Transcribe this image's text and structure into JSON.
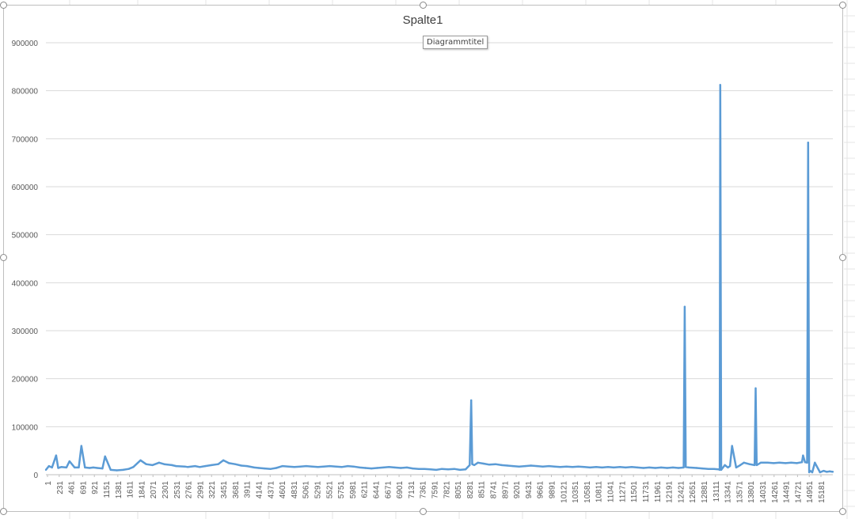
{
  "chart_data": {
    "type": "line",
    "title": "Spalte1",
    "tooltip": "Diagrammtitel",
    "xlabel": "",
    "ylabel": "",
    "ylim": [
      0,
      900000
    ],
    "xlim": [
      1,
      15300
    ],
    "y_ticks": [
      0,
      100000,
      200000,
      300000,
      400000,
      500000,
      600000,
      700000,
      800000,
      900000
    ],
    "y_tick_labels": [
      "0",
      "100000",
      "200000",
      "300000",
      "400000",
      "500000",
      "600000",
      "700000",
      "800000",
      "900000"
    ],
    "x_tick_labels": [
      "1",
      "231",
      "461",
      "691",
      "921",
      "1151",
      "1381",
      "1611",
      "1841",
      "2071",
      "2301",
      "2531",
      "2761",
      "2991",
      "3221",
      "3451",
      "3681",
      "3911",
      "4141",
      "4371",
      "4601",
      "4831",
      "5061",
      "5291",
      "5521",
      "5751",
      "5981",
      "6211",
      "6441",
      "6671",
      "6901",
      "7131",
      "7361",
      "7591",
      "7821",
      "8051",
      "8281",
      "8511",
      "8741",
      "8971",
      "9201",
      "9431",
      "9661",
      "9891",
      "10121",
      "10351",
      "10581",
      "10811",
      "11041",
      "11271",
      "11501",
      "11731",
      "11961",
      "12191",
      "12421",
      "12651",
      "12881",
      "13111",
      "13341",
      "13571",
      "13801",
      "14031",
      "14261",
      "14491",
      "14721",
      "14951",
      "15181"
    ],
    "grid": true,
    "legend": "none",
    "series_color": "#5b9bd5",
    "series": [
      {
        "x": [
          1,
          60,
          120,
          200,
          240,
          300,
          400,
          460,
          560,
          640,
          691,
          760,
          850,
          921,
          1000,
          1100,
          1151,
          1260,
          1380,
          1500,
          1611,
          1700,
          1841,
          1950,
          2071,
          2200,
          2301,
          2450,
          2531,
          2700,
          2761,
          2900,
          2991,
          3100,
          3221,
          3350,
          3451,
          3560,
          3681,
          3800,
          3911,
          4050,
          4141,
          4250,
          4371,
          4480,
          4601,
          4720,
          4831,
          4950,
          5061,
          5180,
          5291,
          5400,
          5521,
          5640,
          5751,
          5870,
          5981,
          6100,
          6211,
          6330,
          6441,
          6560,
          6671,
          6780,
          6901,
          7020,
          7131,
          7250,
          7361,
          7480,
          7591,
          7700,
          7821,
          7940,
          8051,
          8160,
          8240,
          8270,
          8290,
          8330,
          8400,
          8511,
          8620,
          8741,
          8860,
          8971,
          9080,
          9201,
          9320,
          9431,
          9550,
          9661,
          9780,
          9891,
          10000,
          10121,
          10240,
          10351,
          10470,
          10581,
          10700,
          10811,
          10930,
          11041,
          11160,
          11271,
          11390,
          11501,
          11620,
          11731,
          11850,
          11961,
          12080,
          12191,
          12300,
          12400,
          12421,
          12440,
          12500,
          12651,
          12760,
          12881,
          12990,
          13080,
          13100,
          13111,
          13130,
          13200,
          13260,
          13300,
          13341,
          13420,
          13500,
          13571,
          13680,
          13780,
          13800,
          13820,
          13900,
          14031,
          14150,
          14261,
          14380,
          14491,
          14600,
          14700,
          14721,
          14760,
          14800,
          14820,
          14840,
          14860,
          14900,
          14951,
          15050,
          15120,
          15181,
          15240,
          15300
        ],
        "y": [
          10000,
          18000,
          15000,
          40000,
          14000,
          16000,
          15000,
          28000,
          15000,
          15000,
          60000,
          15000,
          14000,
          15000,
          14000,
          13000,
          38000,
          10000,
          9000,
          10000,
          12000,
          16000,
          30000,
          22000,
          20000,
          25000,
          22000,
          20000,
          18000,
          17000,
          16000,
          18000,
          16000,
          18000,
          20000,
          22000,
          30000,
          24000,
          22000,
          19000,
          18000,
          15000,
          14000,
          13000,
          12000,
          14000,
          18000,
          17000,
          16000,
          17000,
          18000,
          17000,
          16000,
          17000,
          18000,
          17000,
          16000,
          18000,
          17000,
          15000,
          14000,
          13000,
          14000,
          15000,
          16000,
          15000,
          14000,
          15000,
          13000,
          12000,
          12000,
          11000,
          10000,
          12000,
          11000,
          12000,
          10000,
          11000,
          20000,
          155000,
          22000,
          20000,
          25000,
          23000,
          21000,
          22000,
          20000,
          19000,
          18000,
          17000,
          18000,
          19000,
          18000,
          17000,
          18000,
          17000,
          16000,
          17000,
          16000,
          17000,
          16000,
          15000,
          16000,
          15000,
          16000,
          15000,
          16000,
          15000,
          16000,
          15000,
          14000,
          15000,
          14000,
          15000,
          14000,
          15000,
          14000,
          15000,
          350000,
          16000,
          15000,
          14000,
          13000,
          12000,
          12000,
          11000,
          10000,
          812000,
          10000,
          20000,
          15000,
          18000,
          60000,
          15000,
          20000,
          25000,
          22000,
          20000,
          180000,
          20000,
          25000,
          25000,
          24000,
          25000,
          24000,
          25000,
          24000,
          26000,
          40000,
          26000,
          25000,
          692000,
          5000,
          8000,
          5000,
          25000,
          5000,
          8000,
          6000,
          7000,
          6000
        ]
      }
    ]
  }
}
